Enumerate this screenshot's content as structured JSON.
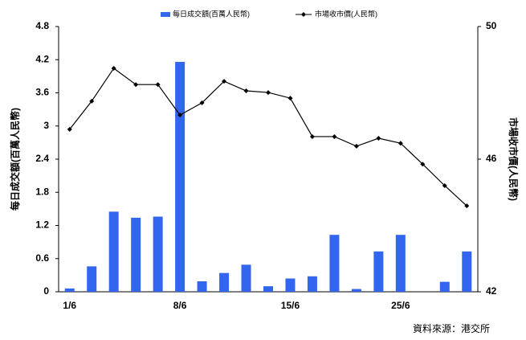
{
  "chart_data": {
    "type": "bar_line",
    "categories": [
      "1/6",
      null,
      null,
      null,
      null,
      "8/6",
      null,
      null,
      null,
      null,
      "15/6",
      null,
      null,
      null,
      null,
      "25/6",
      null,
      null,
      null
    ],
    "series": [
      {
        "name": "每日成交額(百萬人民幣)",
        "type": "bar",
        "color": "#3366ee",
        "values": [
          0.06,
          0.46,
          1.45,
          1.34,
          1.36,
          4.16,
          0.19,
          0.34,
          0.49,
          0.1,
          0.24,
          0.28,
          1.03,
          0.05,
          0.73,
          1.03,
          0,
          0.18,
          0.73
        ]
      },
      {
        "name": "市場收市價(人民幣)",
        "type": "line",
        "axis": "y2",
        "color": "#000000",
        "values": [
          46.9,
          47.75,
          48.74,
          48.25,
          48.25,
          47.33,
          47.7,
          48.35,
          48.06,
          48.01,
          47.84,
          46.68,
          46.68,
          46.39,
          46.63,
          46.48,
          45.85,
          45.2,
          44.59
        ]
      }
    ],
    "ylabel": "每日成交額(百萬人民幣)",
    "y2label": "市場收市價(人民幣)",
    "ylim": [
      0,
      4.8
    ],
    "yticks": [
      0,
      0.6,
      1.2,
      1.8,
      2.4,
      3,
      3.6,
      4.2,
      4.8
    ],
    "y2lim": [
      42,
      50
    ],
    "y2ticks": [
      42,
      46,
      50
    ],
    "source": "資料來源：港交所"
  }
}
